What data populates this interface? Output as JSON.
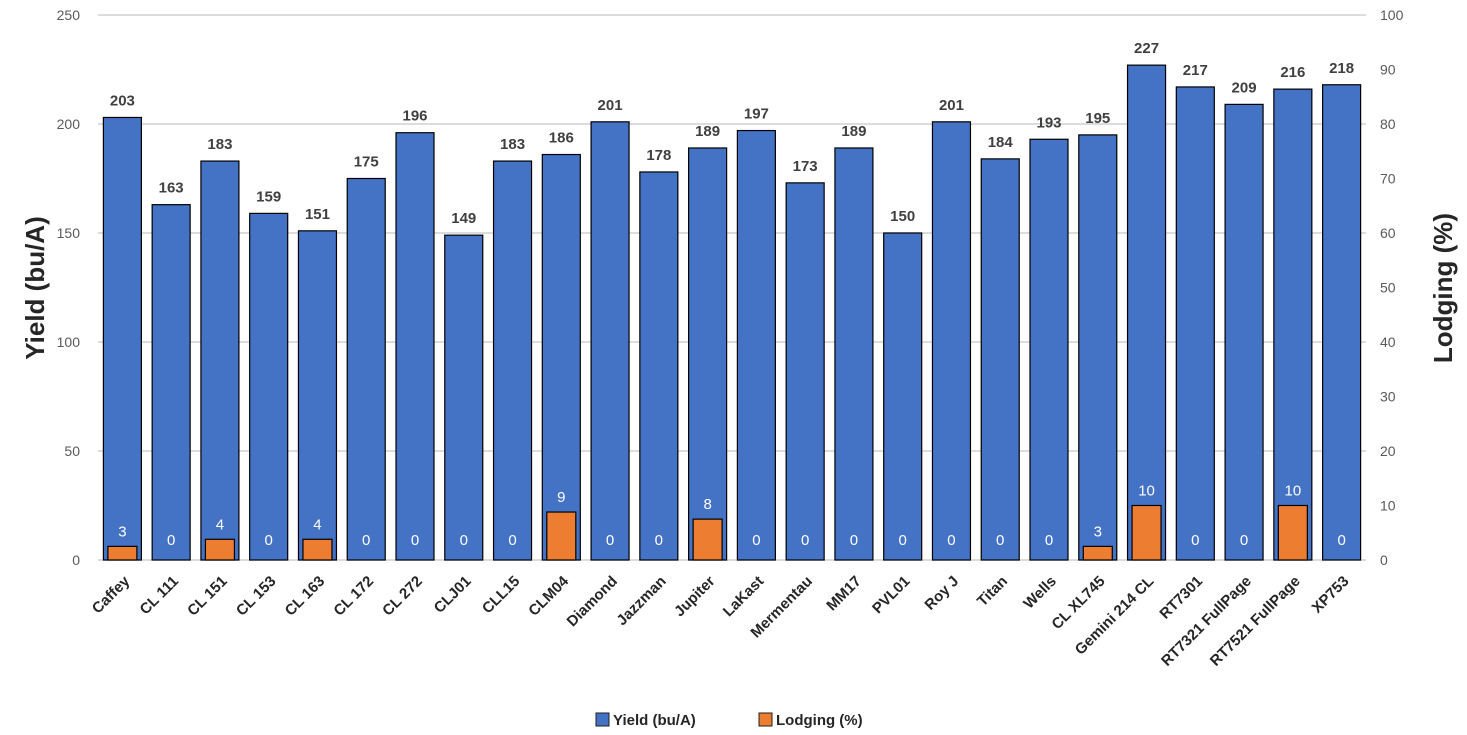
{
  "chart_data": {
    "type": "bar",
    "categories": [
      "Caffey",
      "CL 111",
      "CL 151",
      "CL 153",
      "CL 163",
      "CL 172",
      "CL 272",
      "CLJ01",
      "CLL15",
      "CLM04",
      "Diamond",
      "Jazzman",
      "Jupiter",
      "LaKast",
      "Mermentau",
      "MM17",
      "PVL01",
      "Roy J",
      "Titan",
      "Wells",
      "CL XL745",
      "Gemini 214 CL",
      "RT7301",
      "RT7321 FullPage",
      "RT7521 FullPage",
      "XP753"
    ],
    "series": [
      {
        "name": "Yield (bu/A)",
        "axis": "left",
        "color": "#4472C4",
        "values": [
          203,
          163,
          183,
          159,
          151,
          175,
          196,
          149,
          183,
          186,
          201,
          178,
          189,
          197,
          173,
          189,
          150,
          201,
          184,
          193,
          195,
          227,
          217,
          209,
          216,
          218
        ],
        "labels": [
          "203",
          "163",
          "183",
          "159",
          "151",
          "175",
          "196",
          "149",
          "183",
          "186",
          "201",
          "178",
          "189",
          "197",
          "173",
          "189",
          "150",
          "201",
          "184",
          "193",
          "195",
          "227",
          "217",
          "209",
          "216",
          "218"
        ]
      },
      {
        "name": "Lodging (%)",
        "axis": "right",
        "color": "#ED7D31",
        "values": [
          2.5,
          0,
          3.8,
          0,
          3.8,
          0,
          0,
          0,
          0,
          8.8,
          0,
          0,
          7.5,
          0,
          0,
          0,
          0,
          0,
          0,
          0,
          2.5,
          10,
          0,
          0,
          10,
          0
        ],
        "labels": [
          "3",
          "0",
          "4",
          "0",
          "4",
          "0",
          "0",
          "0",
          "0",
          "9",
          "0",
          "0",
          "8",
          "0",
          "0",
          "0",
          "0",
          "0",
          "0",
          "0",
          "3",
          "10",
          "0",
          "0",
          "10",
          "0"
        ]
      }
    ],
    "ylabel": "Yield (bu/A)",
    "y2label": "Lodging (%)",
    "ylim": [
      0,
      250
    ],
    "y2lim": [
      0,
      100
    ],
    "yticks": [
      "0",
      "50",
      "100",
      "150",
      "200",
      "250"
    ],
    "y2ticks": [
      "0",
      "10",
      "20",
      "30",
      "40",
      "50",
      "60",
      "70",
      "80",
      "90",
      "100"
    ],
    "grid": true,
    "legend": "bottom-center"
  }
}
